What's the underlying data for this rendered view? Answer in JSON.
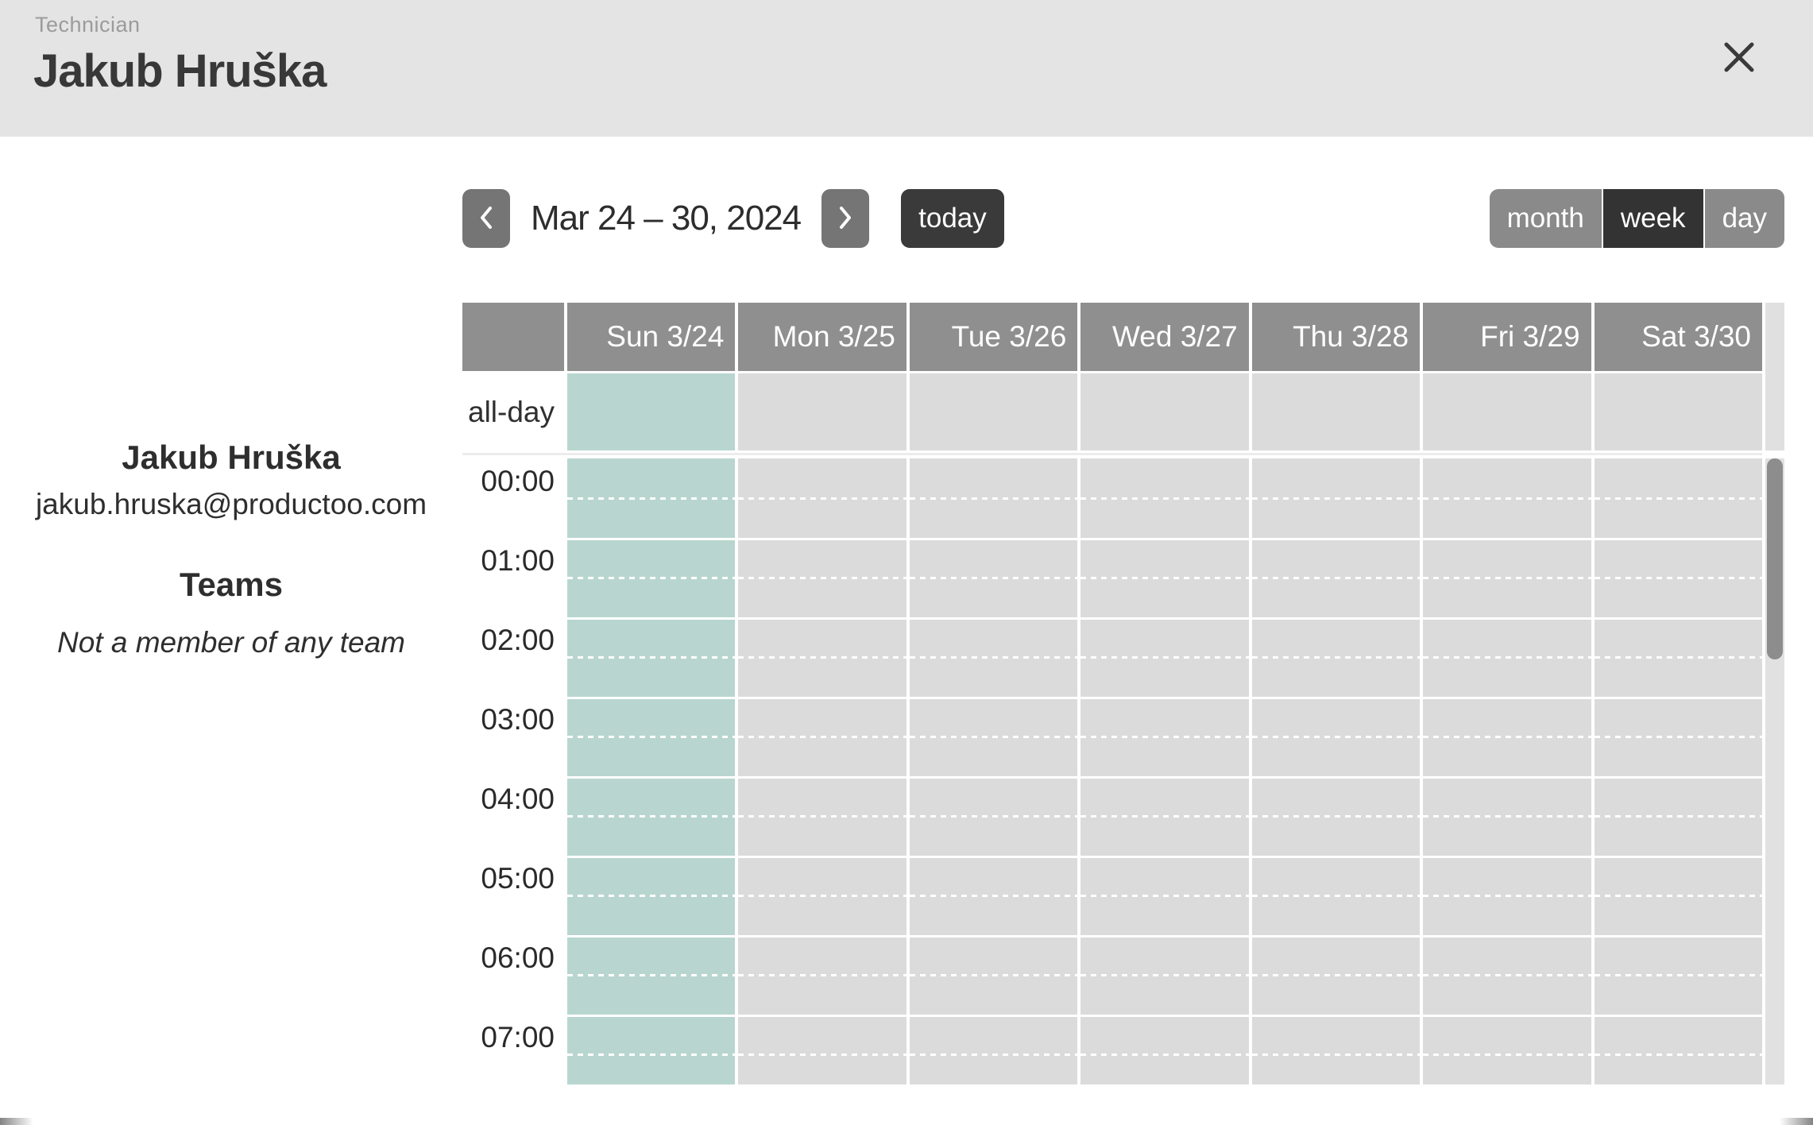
{
  "header": {
    "eyebrow": "Technician",
    "title": "Jakub Hruška"
  },
  "profile": {
    "name": "Jakub Hruška",
    "email": "jakub.hruska@productoo.com",
    "teams_heading": "Teams",
    "teams_empty": "Not a member of any team"
  },
  "toolbar": {
    "title": "Mar 24 – 30, 2024",
    "today_label": "today",
    "views": [
      {
        "id": "month",
        "label": "month",
        "active": false
      },
      {
        "id": "week",
        "label": "week",
        "active": true
      },
      {
        "id": "day",
        "label": "day",
        "active": false
      }
    ]
  },
  "calendar": {
    "allday_label": "all-day",
    "day_headers": [
      "Sun 3/24",
      "Mon 3/25",
      "Tue 3/26",
      "Wed 3/27",
      "Thu 3/28",
      "Fri 3/29",
      "Sat 3/30"
    ],
    "highlighted_day_index": 0,
    "time_slots": [
      "00:00",
      "01:00",
      "02:00",
      "03:00",
      "04:00",
      "05:00",
      "06:00",
      "07:00"
    ],
    "scroll_position": "top"
  },
  "colors": {
    "header_band": "#e4e4e4",
    "calendar_header": "#8f8f8f",
    "highlight_mint": "#b8d6cf",
    "cell_gray": "#dbdbdb",
    "active_button": "#333333",
    "button_gray": "#8a8a8a",
    "nav_button": "#757575",
    "today_button": "#3a3a3a"
  }
}
